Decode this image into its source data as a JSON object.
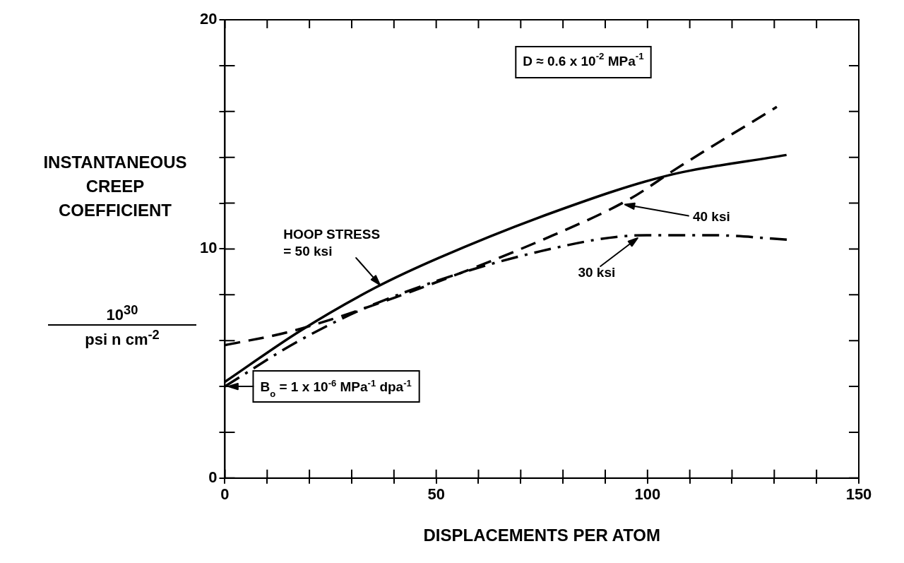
{
  "chart_data": {
    "type": "line",
    "xlabel": "DISPLACEMENTS PER ATOM",
    "ylabel": "INSTANTANEOUS CREEP COEFFICIENT",
    "xlim": [
      0,
      150
    ],
    "ylim": [
      0,
      20
    ],
    "xticks": [
      0,
      {
        "value": 10,
        "label": null
      },
      {
        "value": 20,
        "label": null
      },
      {
        "value": 30,
        "label": null
      },
      {
        "value": 40,
        "label": null
      },
      50,
      {
        "value": 60,
        "label": null
      },
      {
        "value": 70,
        "label": null
      },
      {
        "value": 80,
        "label": null
      },
      {
        "value": 90,
        "label": null
      },
      100,
      {
        "value": 110,
        "label": null
      },
      {
        "value": 120,
        "label": null
      },
      {
        "value": 130,
        "label": null
      },
      {
        "value": 140,
        "label": null
      },
      150
    ],
    "yticks": [
      0,
      {
        "value": 2,
        "label": null
      },
      {
        "value": 4,
        "label": null
      },
      {
        "value": 6,
        "label": null
      },
      {
        "value": 8,
        "label": null
      },
      10,
      {
        "value": 12,
        "label": null
      },
      {
        "value": 14,
        "label": null
      },
      {
        "value": 16,
        "label": null
      },
      {
        "value": 18,
        "label": null
      },
      20
    ],
    "grid": false,
    "legend": false,
    "series": [
      {
        "color": "#000000",
        "line_style": "solid",
        "x": [
          0,
          17.6,
          35.5,
          50.5,
          77.7,
          104.7,
          132.9
        ],
        "values": [
          4.2,
          6.4,
          8.3,
          9.6,
          11.6,
          13.2,
          14.1
        ]
      },
      {
        "color": "#000000",
        "line_style": "dashed",
        "x": [
          0,
          15.6,
          40.5,
          77.7,
          96,
          106.8,
          130.6
        ],
        "values": [
          5.8,
          6.4,
          7.9,
          10.6,
          12.2,
          13.5,
          16.2
        ]
      },
      {
        "color": "#000000",
        "line_style": "dashdot",
        "x": [
          0,
          17.6,
          36.8,
          74.7,
          99.8,
          114.8,
          133.7
        ],
        "values": [
          4.0,
          6.0,
          7.7,
          9.9,
          10.6,
          10.6,
          10.4
        ]
      }
    ],
    "annotations": [
      "10$^{30}$",
      "psi n cm$^{-2}$",
      "D ≈ 0.6 x 10$^{-2}$ MPa$^{-1}$",
      {
        "text": "B$_{o}$ = 1 x 10$^{-6}$ MPa$^{-1}$ dpa$^{-1}$",
        "x": 0,
        "y": 4
      },
      {
        "text": "HOOP STRESS\n= 50 ksi",
        "x": 37,
        "y": 8.5
      },
      {
        "text": "40 ksi",
        "x": 94,
        "y": 12.0
      },
      {
        "text": "30 ksi",
        "x": 98,
        "y": 10.6
      }
    ]
  }
}
